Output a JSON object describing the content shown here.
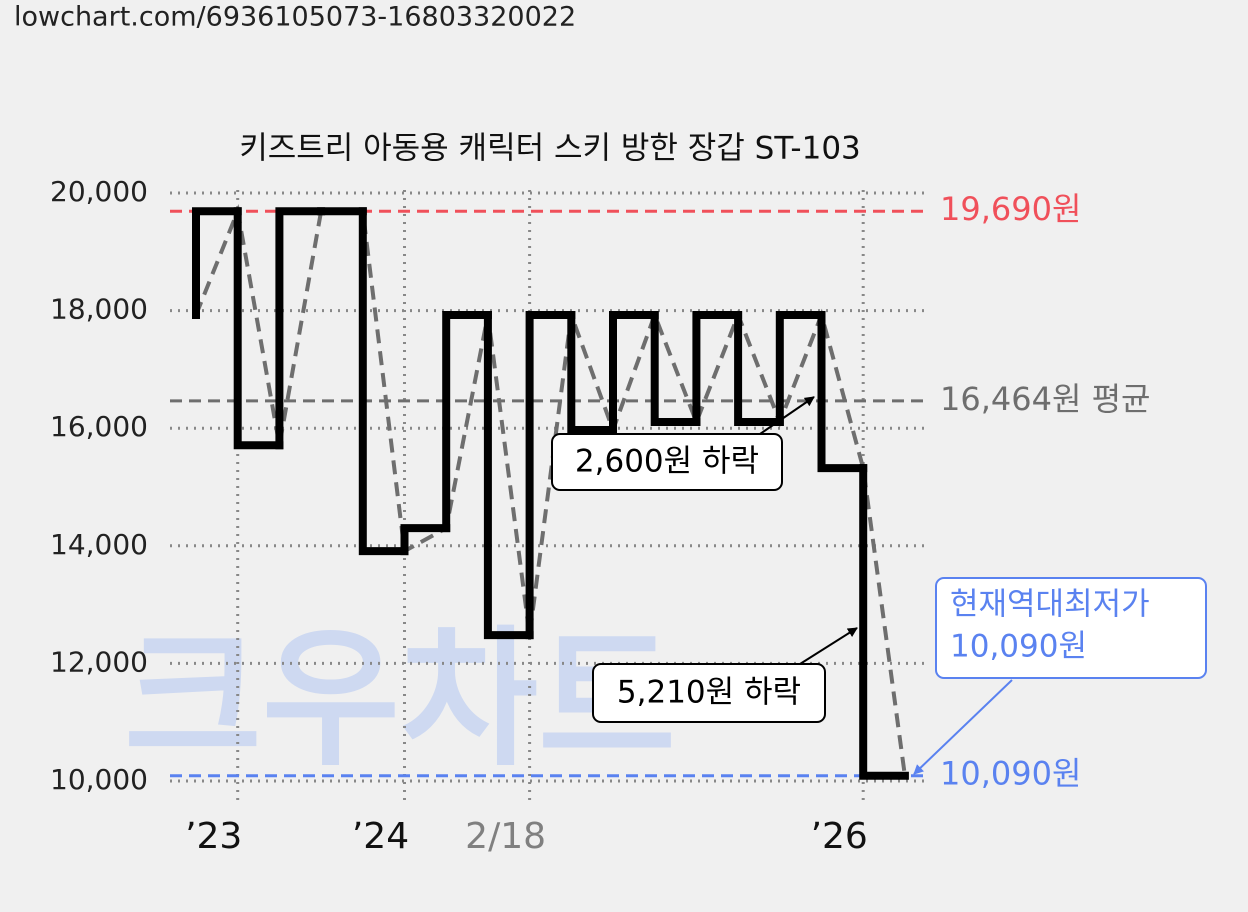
{
  "url": "lowchart.com/6936105073-16803320022",
  "watermark": "크우차트",
  "chart_data": {
    "type": "line",
    "title": "키즈트리 아동용 캐릭터 스키 방한 장갑 ST-103",
    "categories": [
      null,
      "’23",
      null,
      null,
      null,
      "’24",
      null,
      null,
      "2/18",
      null,
      null,
      null,
      null,
      null,
      null,
      null,
      "’26",
      null
    ],
    "category_colors": {
      "2/18": "#808080"
    },
    "values": [
      17925,
      19690,
      15710,
      19690,
      19690,
      13910,
      14300,
      17925,
      12480,
      17925,
      15970,
      17925,
      16105,
      17925,
      16105,
      17925,
      15320,
      10090
    ],
    "color": "#000000",
    "trend_color": "#6e6e6e",
    "ylim": [
      10000,
      20000
    ],
    "yticks": [
      {
        "value": 10000,
        "label": "10,000"
      },
      {
        "value": 12000,
        "label": "12,000"
      },
      {
        "value": 14000,
        "label": "14,000"
      },
      {
        "value": 16000,
        "label": "16,000"
      },
      {
        "value": 18000,
        "label": "18,000"
      },
      {
        "value": 20000,
        "label": "20,000"
      }
    ],
    "grid": true,
    "reference_lines": [
      {
        "value": 19690,
        "label": "19,690원",
        "color": "#f0505a"
      },
      {
        "value": 16464,
        "label": "16,464원 평균",
        "color": "#6e6e6e"
      },
      {
        "value": 10090,
        "label": "10,090원",
        "color": "#5a82f0"
      }
    ],
    "annotations": [
      {
        "text": "2,600원 하락"
      },
      {
        "text": "5,210원 하락"
      }
    ],
    "callout": {
      "lines": [
        "현재역대최저가",
        "10,090원"
      ],
      "color": "#5a82f0"
    }
  }
}
